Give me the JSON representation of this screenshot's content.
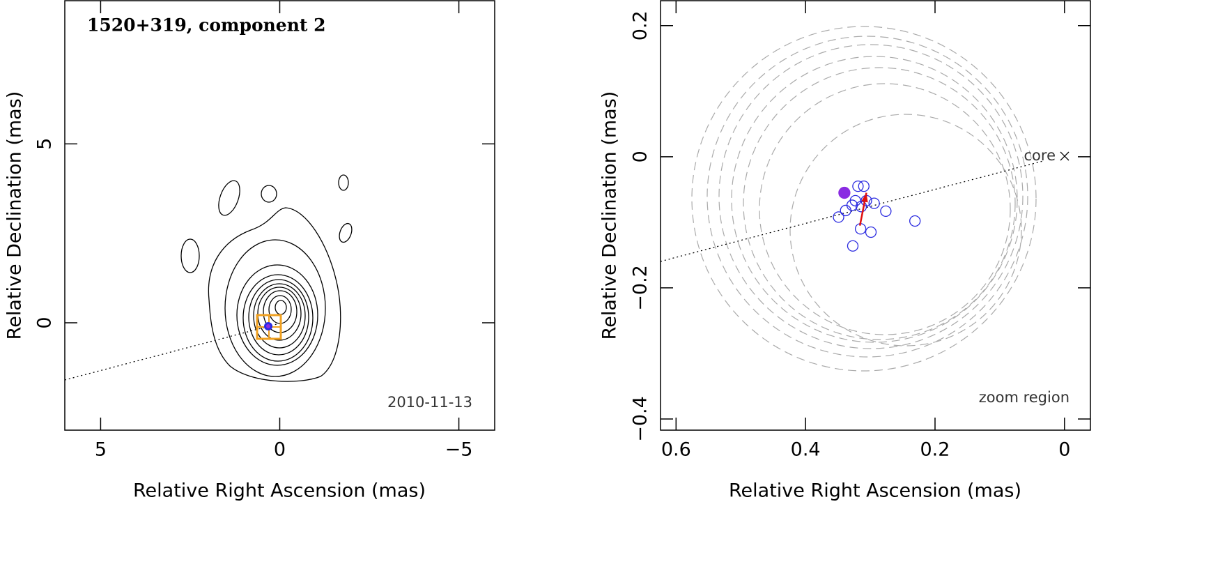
{
  "chart_data": [
    {
      "type": "contour",
      "title": "1520+319, component 2",
      "xlabel": "Relative Right Ascension (mas)",
      "ylabel": "Relative Declination (mas)",
      "xlim": [
        6,
        -6
      ],
      "ylim": [
        -3,
        9
      ],
      "xticks": [
        5,
        0,
        {
          "value": -5,
          "label": "−5"
        }
      ],
      "yticks": [
        0,
        5
      ],
      "annotations": [
        "2010-11-13"
      ]
    },
    {
      "type": "scatter",
      "xlabel": "Relative Right Ascension (mas)",
      "ylabel": "Relative Declination (mas)",
      "xlim": [
        0.624,
        -0.04
      ],
      "ylim": [
        -0.417,
        0.238
      ],
      "xticks": [
        0.6,
        0.4,
        0.2,
        0
      ],
      "yticks": [
        {
          "value": -0.4,
          "label": "−0.4"
        },
        {
          "value": -0.2,
          "label": "−0.2"
        },
        0,
        0.2
      ],
      "annotations": [
        "core",
        "zoom region"
      ],
      "series": [
        {
          "marker": "open-circle",
          "color": "#2a2ae0",
          "x": [
            0.319,
            0.31,
            0.323,
            0.328,
            0.314,
            0.306,
            0.294,
            0.338,
            0.276,
            0.349,
            0.315,
            0.299,
            0.231,
            0.327
          ],
          "y": [
            -0.045,
            -0.045,
            -0.067,
            -0.074,
            -0.076,
            -0.067,
            -0.071,
            -0.082,
            -0.083,
            -0.092,
            -0.11,
            -0.115,
            -0.098,
            -0.136
          ]
        },
        {
          "marker": "filled-circle",
          "color": "#8a2be2",
          "x": [
            0.34
          ],
          "y": [
            -0.055
          ]
        }
      ],
      "arrow": {
        "color": "#e01010",
        "x": [
          0.316,
          0.306
        ],
        "y": [
          -0.105,
          -0.055
        ]
      }
    }
  ]
}
